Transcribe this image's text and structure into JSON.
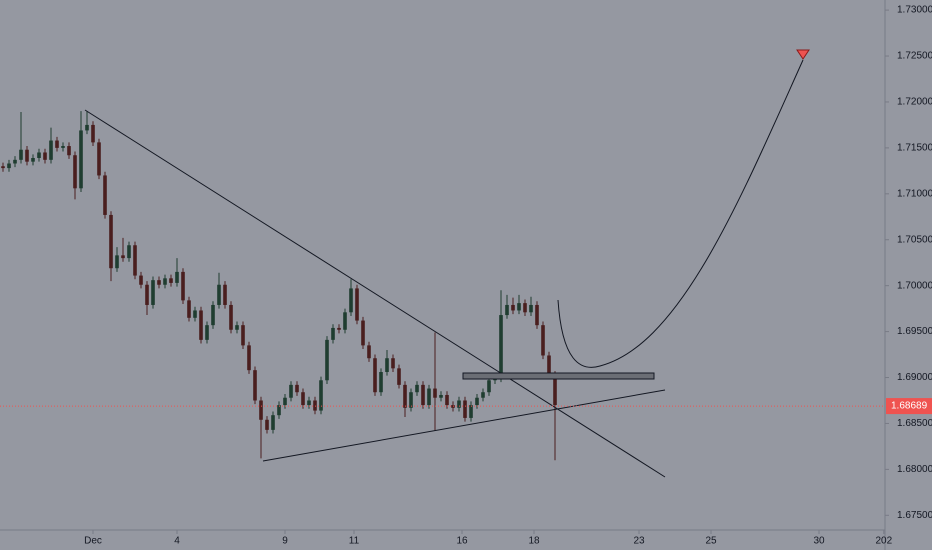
{
  "chart_data": {
    "type": "candlestick",
    "up_color": "#1f3d30",
    "down_color": "#4a1e1e",
    "background": "#9598a1",
    "last_price": 1.68689,
    "last_price_color": "#ef5350",
    "ylim": [
      1.6734,
      1.7311
    ],
    "xlim": [
      -0.5,
      147
    ],
    "yticks": [
      {
        "value": 1.73,
        "label": "1.73000"
      },
      {
        "value": 1.725,
        "label": "1.72500"
      },
      {
        "value": 1.72,
        "label": "1.72000"
      },
      {
        "value": 1.715,
        "label": "1.71500"
      },
      {
        "value": 1.71,
        "label": "1.71000"
      },
      {
        "value": 1.705,
        "label": "1.70500"
      },
      {
        "value": 1.7,
        "label": "1.70000"
      },
      {
        "value": 1.695,
        "label": "1.69500"
      },
      {
        "value": 1.69,
        "label": "1.69000"
      },
      {
        "value": 1.685,
        "label": "1.68500"
      },
      {
        "value": 1.68,
        "label": "1.68000"
      },
      {
        "value": 1.675,
        "label": "1.67500"
      }
    ],
    "xticks": [
      {
        "value": 15,
        "label": "Dec"
      },
      {
        "value": 29,
        "label": "4"
      },
      {
        "value": 47,
        "label": "9"
      },
      {
        "value": 58.5,
        "label": "11"
      },
      {
        "value": 76.5,
        "label": "16"
      },
      {
        "value": 88.5,
        "label": "18"
      },
      {
        "value": 106,
        "label": "23"
      },
      {
        "value": 118,
        "label": "25"
      },
      {
        "value": 136,
        "label": "30"
      },
      {
        "value": 146.8,
        "label": "202"
      }
    ],
    "open": [
      1.713,
      1.7128,
      1.7133,
      1.7137,
      1.7148,
      1.7135,
      1.7139,
      1.7145,
      1.7137,
      1.7158,
      1.715,
      1.7152,
      1.7142,
      1.7106,
      1.7169,
      1.7175,
      1.7156,
      1.712,
      1.7077,
      1.7019,
      1.7033,
      1.703,
      1.7044,
      1.7011,
      1.7001,
      1.6979,
      1.7006,
      1.7001,
      1.7008,
      1.7003,
      1.7015,
      1.6984,
      1.6965,
      1.6973,
      1.6941,
      1.6957,
      1.6979,
      1.7001,
      1.6979,
      1.6952,
      1.6957,
      1.6935,
      1.6908,
      1.6875,
      1.6854,
      1.6843,
      1.6859,
      1.687,
      1.6878,
      1.6892,
      1.6884,
      1.687,
      1.6875,
      1.6864,
      1.6897,
      1.6941,
      1.6954,
      1.6952,
      1.6971,
      1.6997,
      1.6962,
      1.6935,
      1.6921,
      1.6884,
      1.6906,
      1.6921,
      1.691,
      1.6892,
      1.6867,
      1.6884,
      1.6892,
      1.687,
      1.6888,
      1.6878,
      1.6881,
      1.687,
      1.6867,
      1.6875,
      1.6856,
      1.687,
      1.6878,
      1.6884,
      1.6897,
      1.6899,
      1.6968,
      1.6979,
      1.6973,
      1.6981,
      1.6971,
      1.6979,
      1.6957,
      1.6924,
      1.6903
    ],
    "high": [
      1.7134,
      1.7137,
      1.7141,
      1.7189,
      1.7152,
      1.7143,
      1.7149,
      1.7149,
      1.7172,
      1.7162,
      1.7156,
      1.7156,
      1.7146,
      1.719,
      1.719,
      1.7179,
      1.716,
      1.7124,
      1.7081,
      1.7042,
      1.7052,
      1.7048,
      1.7048,
      1.7015,
      1.7005,
      1.701,
      1.701,
      1.7012,
      1.7012,
      1.703,
      1.7019,
      1.6988,
      1.6977,
      1.6977,
      1.6961,
      1.6983,
      1.7014,
      1.7005,
      1.6983,
      1.6961,
      1.6961,
      1.6939,
      1.6912,
      1.6879,
      1.6858,
      1.6863,
      1.6874,
      1.6882,
      1.6896,
      1.6896,
      1.6888,
      1.6879,
      1.6879,
      1.6901,
      1.6945,
      1.6958,
      1.6958,
      1.6975,
      1.7007,
      1.7001,
      1.6966,
      1.6939,
      1.6925,
      1.691,
      1.693,
      1.6925,
      1.6914,
      1.6896,
      1.6888,
      1.6896,
      1.6896,
      1.6892,
      1.6949,
      1.6885,
      1.6885,
      1.6874,
      1.6879,
      1.6879,
      1.6874,
      1.6882,
      1.6888,
      1.6901,
      1.6903,
      1.6995,
      1.699,
      1.6987,
      1.699,
      1.6985,
      1.6988,
      1.6983,
      1.6961,
      1.6928,
      1.6907
    ],
    "low": [
      1.7124,
      1.7124,
      1.7129,
      1.7133,
      1.7131,
      1.7131,
      1.7135,
      1.7133,
      1.7133,
      1.7146,
      1.7146,
      1.7138,
      1.7094,
      1.7102,
      1.7165,
      1.7152,
      1.7116,
      1.7073,
      1.7005,
      1.7015,
      1.7026,
      1.7026,
      1.7007,
      1.6997,
      1.6968,
      1.6975,
      1.6997,
      1.6997,
      1.6999,
      1.6999,
      1.698,
      1.6961,
      1.6961,
      1.6937,
      1.6937,
      1.6953,
      1.6975,
      1.6975,
      1.6948,
      1.6948,
      1.6931,
      1.6904,
      1.6871,
      1.6812,
      1.6839,
      1.6839,
      1.6855,
      1.6866,
      1.6874,
      1.688,
      1.6866,
      1.6866,
      1.686,
      1.686,
      1.6893,
      1.6937,
      1.6948,
      1.6948,
      1.6967,
      1.6958,
      1.6931,
      1.6917,
      1.688,
      1.688,
      1.6902,
      1.6906,
      1.6888,
      1.6857,
      1.6863,
      1.688,
      1.6866,
      1.6866,
      1.6842,
      1.6874,
      1.6866,
      1.6863,
      1.6863,
      1.6852,
      1.6852,
      1.6866,
      1.6874,
      1.688,
      1.6893,
      1.6895,
      1.6964,
      1.6969,
      1.6969,
      1.6967,
      1.6967,
      1.6953,
      1.692,
      1.6899,
      1.681
    ],
    "close": [
      1.7128,
      1.7133,
      1.7137,
      1.7148,
      1.7135,
      1.7139,
      1.7145,
      1.7137,
      1.7158,
      1.715,
      1.7152,
      1.7142,
      1.7106,
      1.7169,
      1.7175,
      1.7156,
      1.712,
      1.7077,
      1.7019,
      1.7033,
      1.703,
      1.7044,
      1.7011,
      1.7001,
      1.6979,
      1.7006,
      1.7001,
      1.7008,
      1.7003,
      1.7015,
      1.6984,
      1.6965,
      1.6973,
      1.6941,
      1.6957,
      1.6979,
      1.7001,
      1.6979,
      1.6952,
      1.6957,
      1.6935,
      1.6908,
      1.6875,
      1.6854,
      1.6843,
      1.6859,
      1.687,
      1.6878,
      1.6892,
      1.6884,
      1.687,
      1.6875,
      1.6864,
      1.6897,
      1.6941,
      1.6954,
      1.6952,
      1.6971,
      1.6997,
      1.6962,
      1.6935,
      1.6921,
      1.6884,
      1.6906,
      1.6921,
      1.691,
      1.6892,
      1.6867,
      1.6884,
      1.6892,
      1.687,
      1.6888,
      1.6878,
      1.6881,
      1.687,
      1.6867,
      1.6875,
      1.6856,
      1.687,
      1.6878,
      1.6884,
      1.6897,
      1.6899,
      1.6968,
      1.6979,
      1.6973,
      1.6981,
      1.6971,
      1.6979,
      1.6957,
      1.6924,
      1.6903,
      1.687
    ]
  }
}
